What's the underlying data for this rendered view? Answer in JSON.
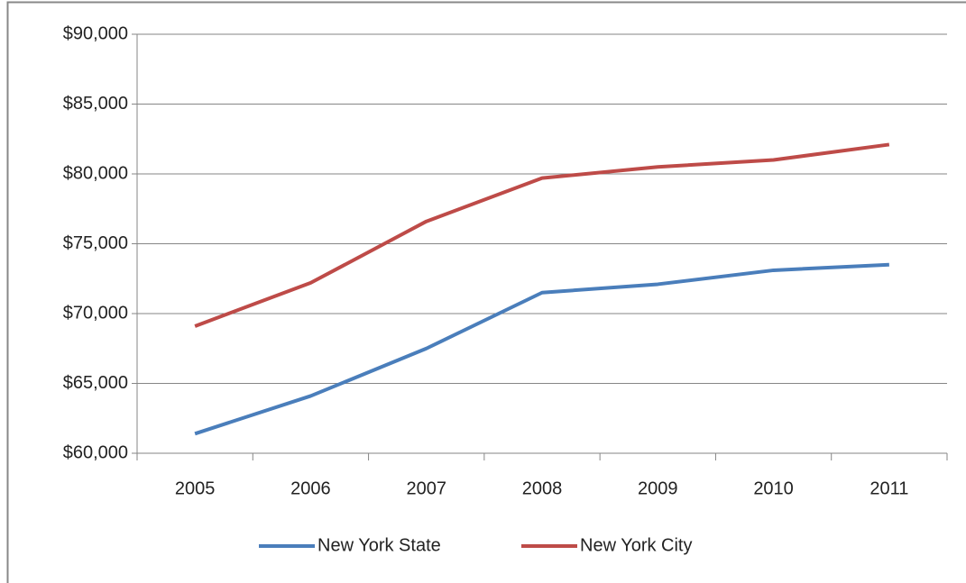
{
  "chart_data": {
    "type": "line",
    "categories": [
      "2005",
      "2006",
      "2007",
      "2008",
      "2009",
      "2010",
      "2011"
    ],
    "series": [
      {
        "name": "New York State",
        "color": "#4a7ebb",
        "values": [
          61400,
          64100,
          67500,
          71500,
          72100,
          73100,
          73500
        ]
      },
      {
        "name": "New York City",
        "color": "#be4b48",
        "values": [
          69100,
          72200,
          76600,
          79700,
          80500,
          81000,
          82100
        ]
      }
    ],
    "ylim": [
      60000,
      90000
    ],
    "yticks": [
      {
        "value": 60000,
        "label": "$60,000"
      },
      {
        "value": 65000,
        "label": "$65,000"
      },
      {
        "value": 70000,
        "label": "$70,000"
      },
      {
        "value": 75000,
        "label": "$75,000"
      },
      {
        "value": 80000,
        "label": "$80,000"
      },
      {
        "value": 85000,
        "label": "$85,000"
      },
      {
        "value": 90000,
        "label": "$90,000"
      }
    ],
    "grid": true,
    "legend": "bottom"
  }
}
